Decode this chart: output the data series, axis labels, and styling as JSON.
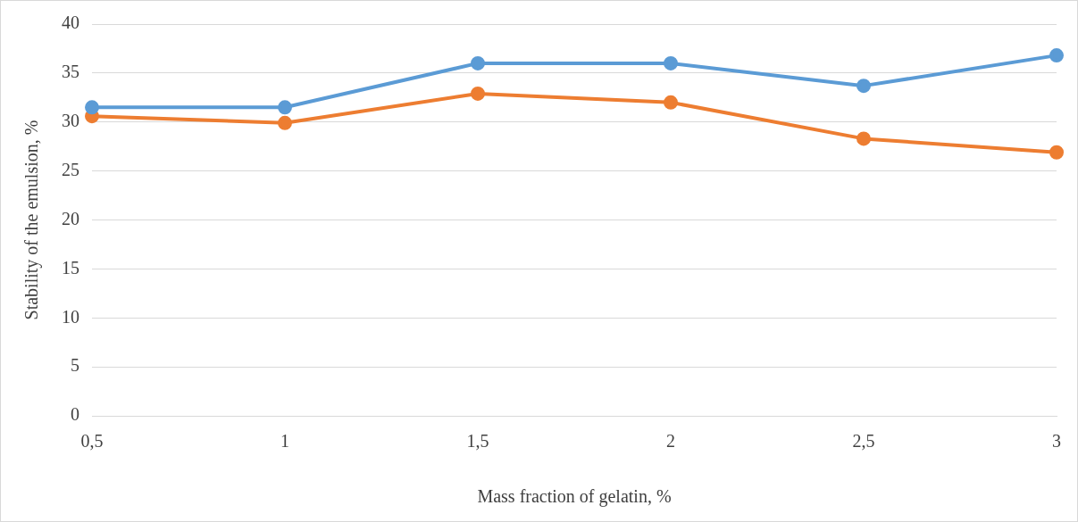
{
  "chart_data": {
    "type": "line",
    "xlabel": "Mass fraction of gelatin, %",
    "ylabel": "Stability of the emulsion, %",
    "categories": [
      "0,5",
      "1",
      "1,5",
      "2",
      "2,5",
      "3"
    ],
    "series": [
      {
        "color": "#5b9bd5",
        "values": [
          31.5,
          31.5,
          36.0,
          36.0,
          33.7,
          36.8
        ]
      },
      {
        "color": "#ed7d31",
        "values": [
          30.6,
          29.9,
          32.9,
          32.0,
          28.3,
          26.9
        ]
      }
    ],
    "ylim": [
      0,
      40
    ],
    "yticks": [
      0,
      5,
      10,
      15,
      20,
      25,
      30,
      35,
      40
    ],
    "grid": "y",
    "marker": "circle",
    "line_style": "solid",
    "legend": false
  }
}
